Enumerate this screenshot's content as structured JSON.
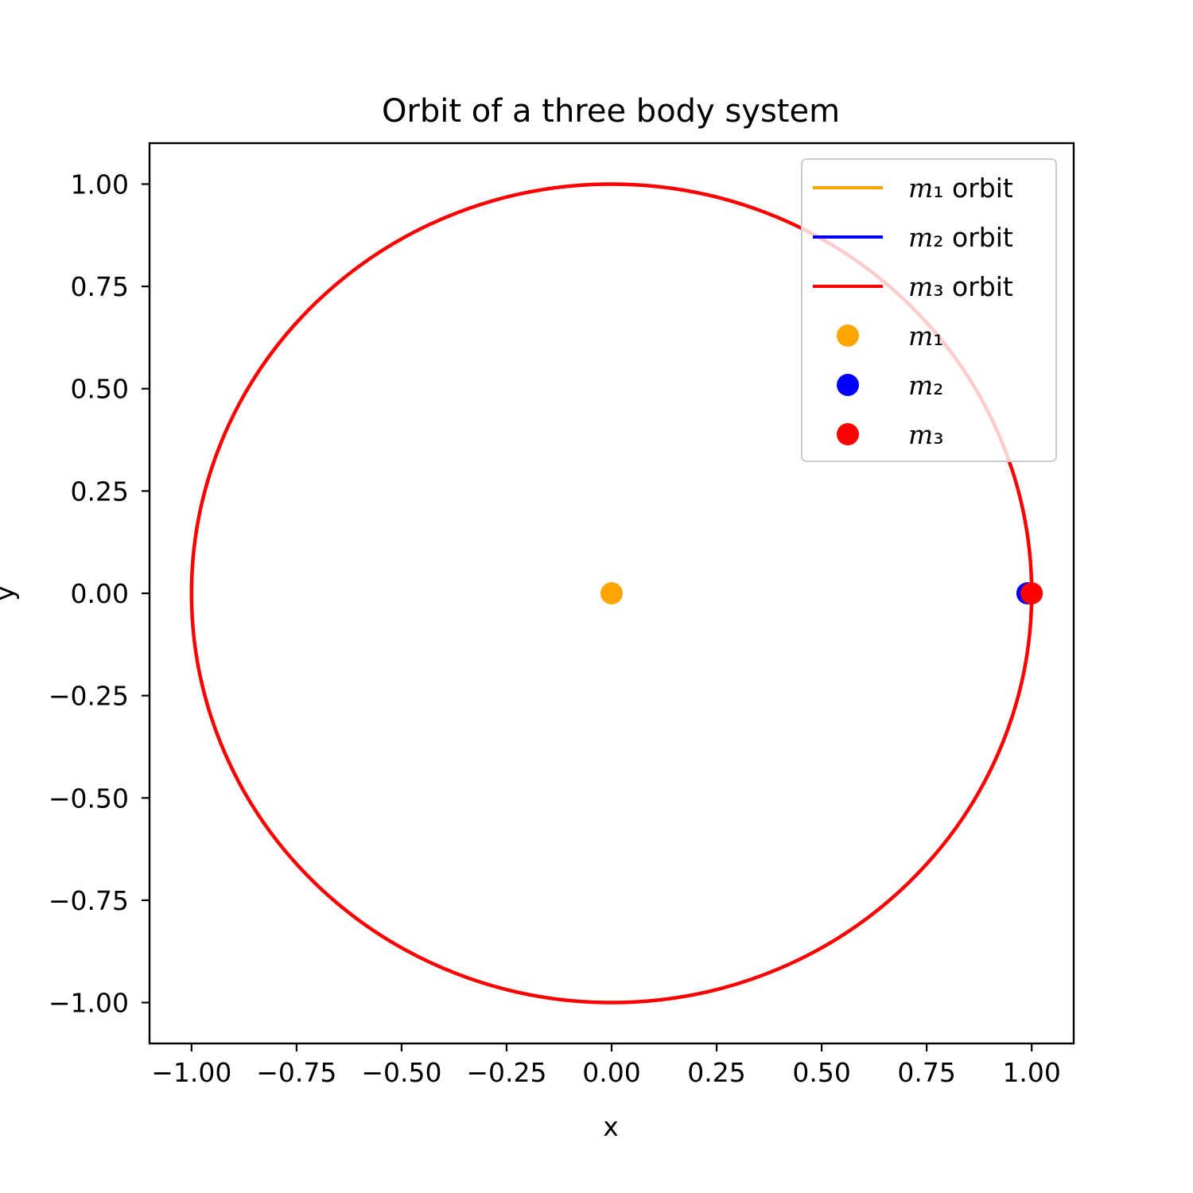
{
  "chart_data": {
    "type": "line",
    "title": "Orbit of a three body system",
    "xlabel": "x",
    "ylabel": "y",
    "xlim": [
      -1.1,
      1.1
    ],
    "ylim": [
      -1.1,
      1.1
    ],
    "xticks": [
      -1.0,
      -0.75,
      -0.5,
      -0.25,
      0.0,
      0.25,
      0.5,
      0.75,
      1.0
    ],
    "yticks": [
      -1.0,
      -0.75,
      -0.5,
      -0.25,
      0.0,
      0.25,
      0.5,
      0.75,
      1.0
    ],
    "xtick_labels": [
      "−1.00",
      "−0.75",
      "−0.50",
      "−0.25",
      "0.00",
      "0.25",
      "0.50",
      "0.75",
      "1.00"
    ],
    "ytick_labels": [
      "−1.00",
      "−0.75",
      "−0.50",
      "−0.25",
      "0.00",
      "0.25",
      "0.50",
      "0.75",
      "1.00"
    ],
    "grid": false,
    "legend_position": "top-right",
    "series": [
      {
        "name": "m1 orbit",
        "legend_label": "m₁ orbit",
        "kind": "line",
        "color": "#ffa500",
        "shape": "point",
        "center": [
          0,
          0
        ],
        "radius": 0
      },
      {
        "name": "m2 orbit",
        "legend_label": "m₂ orbit",
        "kind": "line",
        "color": "#0000ff",
        "shape": "circle",
        "center": [
          0,
          0
        ],
        "radius": 1.0
      },
      {
        "name": "m3 orbit",
        "legend_label": "m₃ orbit",
        "kind": "line",
        "color": "#ff0000",
        "shape": "circle",
        "center": [
          0,
          0
        ],
        "radius": 1.0
      }
    ],
    "markers": [
      {
        "name": "m1",
        "legend_label": "m₁",
        "color": "#ffa500",
        "x": 0.0,
        "y": 0.0
      },
      {
        "name": "m2",
        "legend_label": "m₂",
        "color": "#0000ff",
        "x": 0.99,
        "y": 0.0
      },
      {
        "name": "m3",
        "legend_label": "m₃",
        "color": "#ff0000",
        "x": 1.0,
        "y": 0.0
      }
    ]
  }
}
